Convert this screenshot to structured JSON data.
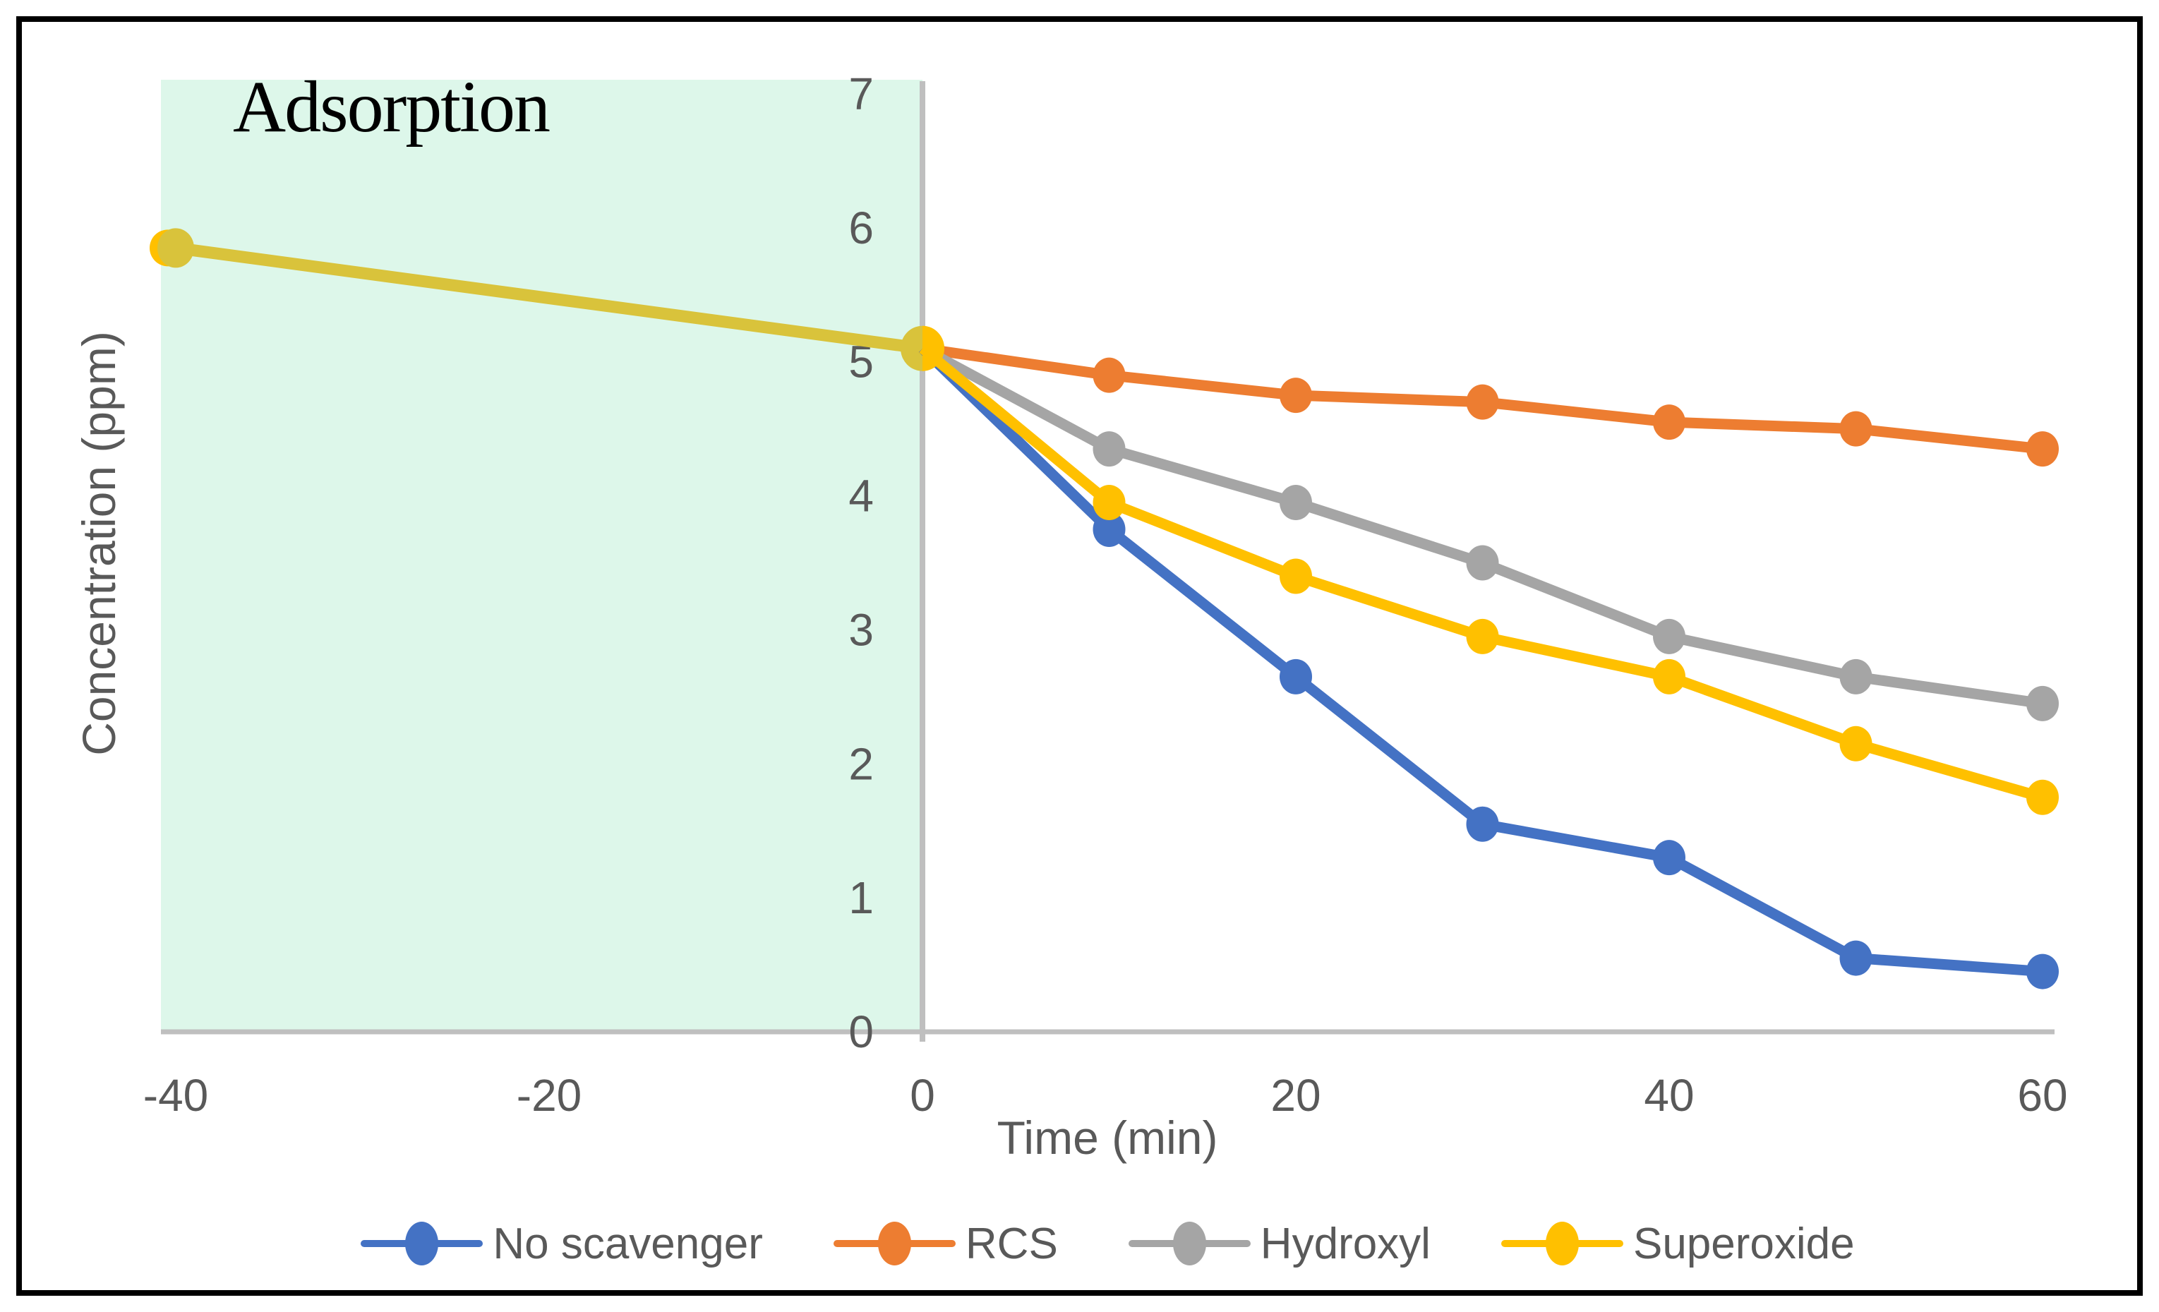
{
  "chart_data": {
    "type": "line",
    "title": "",
    "xlabel": "Time (min)",
    "ylabel": "Concentration (ppm)",
    "x_ticks": [
      -40,
      -20,
      0,
      20,
      40,
      60
    ],
    "y_ticks": [
      0,
      1,
      2,
      3,
      4,
      5,
      6,
      7
    ],
    "xlim": [
      -40.8,
      60.7
    ],
    "ylim": [
      0,
      7.1
    ],
    "grid": false,
    "legend_position": "bottom",
    "region": {
      "label": "Adsorption",
      "x_start": -40.8,
      "x_end": 0,
      "fill": "#ddf7ea"
    },
    "adsorption_phase": {
      "note": "pre-treatment adsorption segment shared by all series",
      "x": [
        -40,
        0
      ],
      "values": [
        5.85,
        5.1
      ],
      "line_color_in_region": "#d9c33b",
      "marker_base_color": "#ffc000"
    },
    "series": [
      {
        "name": "No scavenger",
        "color": "#4472c4",
        "x": [
          0,
          10,
          20,
          30,
          40,
          50,
          60
        ],
        "values": [
          5.1,
          3.75,
          2.65,
          1.55,
          1.3,
          0.55,
          0.45
        ]
      },
      {
        "name": "RCS",
        "color": "#ed7d31",
        "x": [
          0,
          10,
          20,
          30,
          40,
          50,
          60
        ],
        "values": [
          5.1,
          4.9,
          4.75,
          4.7,
          4.55,
          4.5,
          4.35
        ]
      },
      {
        "name": "Hydroxyl",
        "color": "#a5a5a5",
        "x": [
          0,
          10,
          20,
          30,
          40,
          50,
          60
        ],
        "values": [
          5.1,
          4.35,
          3.95,
          3.5,
          2.95,
          2.65,
          2.45
        ]
      },
      {
        "name": "Superoxide",
        "color": "#ffc000",
        "x": [
          0,
          10,
          20,
          30,
          40,
          50,
          60
        ],
        "values": [
          5.1,
          3.95,
          3.4,
          2.95,
          2.65,
          2.15,
          1.75
        ]
      }
    ],
    "colors": {
      "axis_line": "#bfbfbf",
      "tick_text": "#595959"
    }
  }
}
